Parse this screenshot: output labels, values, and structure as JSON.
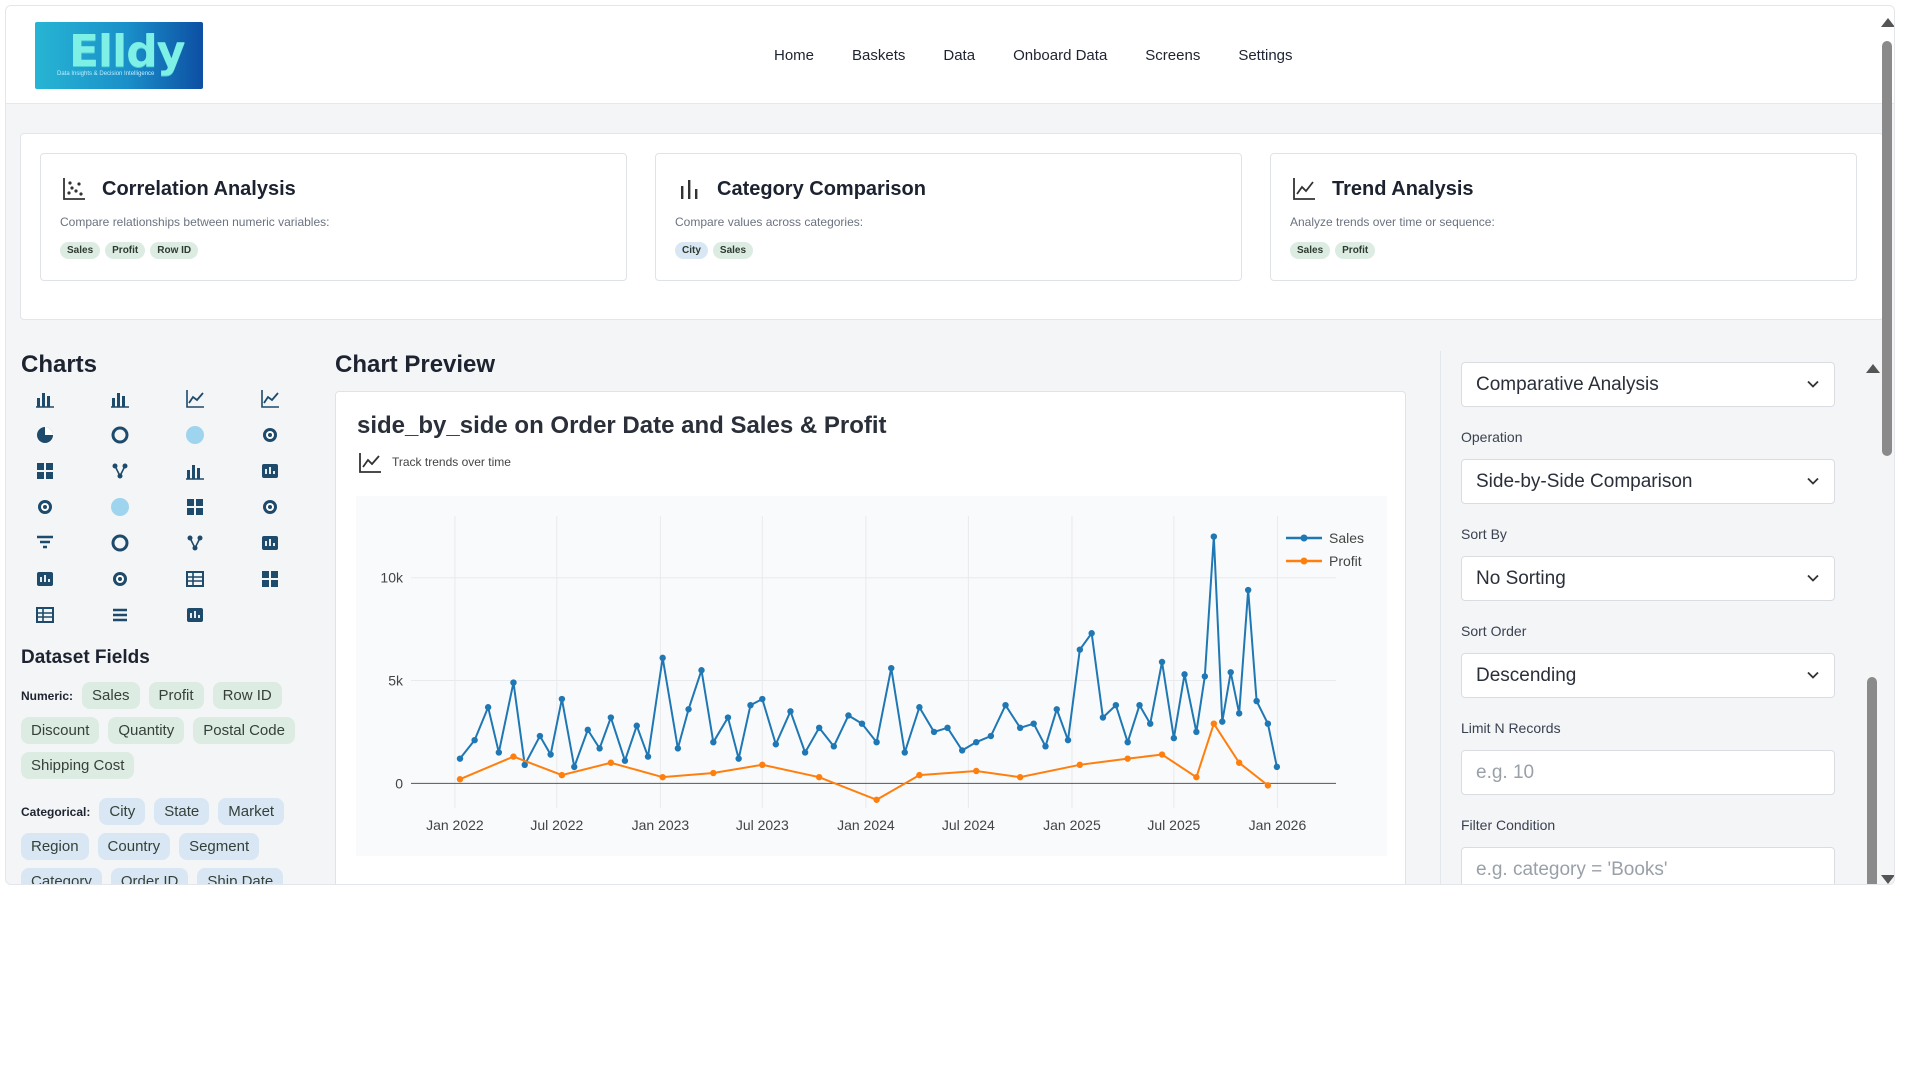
{
  "header": {
    "logo_text": "Elldy",
    "logo_tagline": "Data Insights & Decision Intelligence",
    "nav": [
      "Home",
      "Baskets",
      "Data",
      "Onboard Data",
      "Screens",
      "Settings"
    ]
  },
  "suggestions": [
    {
      "icon": "scatter-plot-icon",
      "title": "Correlation Analysis",
      "desc": "Compare relationships between numeric variables:",
      "tags": [
        {
          "text": "Sales",
          "kind": "green"
        },
        {
          "text": "Profit",
          "kind": "green"
        },
        {
          "text": "Row ID",
          "kind": "green"
        }
      ]
    },
    {
      "icon": "bar-chart-icon",
      "title": "Category Comparison",
      "desc": "Compare values across categories:",
      "tags": [
        {
          "text": "City",
          "kind": "blue"
        },
        {
          "text": "Sales",
          "kind": "green"
        }
      ]
    },
    {
      "icon": "line-chart-icon",
      "title": "Trend Analysis",
      "desc": "Analyze trends over time or sequence:",
      "tags": [
        {
          "text": "Sales",
          "kind": "green"
        },
        {
          "text": "Profit",
          "kind": "green"
        }
      ]
    }
  ],
  "charts_panel": {
    "title": "Charts",
    "icons": [
      "bar-chart-icon",
      "grouped-bar-icon",
      "line-chart-icon",
      "area-chart-icon",
      "pie-chart-icon",
      "donut-chart-icon",
      "bubble-icon",
      "radial-icon",
      "scatter-icon",
      "cluster-icon",
      "column-chart-icon",
      "histogram-icon",
      "violin-icon",
      "circle-icon",
      "treemap-icon",
      "sunburst-icon",
      "funnel-icon",
      "gauge-icon",
      "network-icon",
      "waterfall-icon",
      "candlestick-icon",
      "polar-icon",
      "table-icon",
      "pivot-icon",
      "grid-icon",
      "list-icon",
      "kpi-icon"
    ]
  },
  "fields": {
    "title": "Dataset Fields",
    "numeric_label": "Numeric:",
    "numeric": [
      "Sales",
      "Profit",
      "Row ID",
      "Discount",
      "Quantity",
      "Postal Code",
      "Shipping Cost"
    ],
    "categorical_label": "Categorical:",
    "categorical": [
      "City",
      "State",
      "Market",
      "Region",
      "Country",
      "Segment",
      "Category",
      "Order ID",
      "Ship Date"
    ]
  },
  "preview": {
    "heading": "Chart Preview",
    "title": "side_by_side on Order Date and Sales & Profit",
    "subtitle": "Track trends over time"
  },
  "controls": {
    "analysis_type": "Comparative Analysis",
    "operation_label": "Operation",
    "operation": "Side-by-Side Comparison",
    "sort_by_label": "Sort By",
    "sort_by": "No Sorting",
    "sort_order_label": "Sort Order",
    "sort_order": "Descending",
    "limit_label": "Limit N Records",
    "limit_placeholder": "e.g. 10",
    "filter_label": "Filter Condition",
    "filter_placeholder": "e.g. category = 'Books'"
  },
  "chart_data": {
    "type": "line",
    "title": "",
    "x_ticks": [
      "Jan 2022",
      "Jul 2022",
      "Jan 2023",
      "Jul 2023",
      "Jan 2024",
      "Jul 2024",
      "Jan 2025",
      "Jul 2025",
      "Jan 2026"
    ],
    "y_ticks": [
      "0",
      "5k",
      "10k"
    ],
    "ylim": [
      -1200,
      13000
    ],
    "xlim": [
      "2021-10-15",
      "2026-04-15"
    ],
    "legend_position": "top-right",
    "series": [
      {
        "name": "Sales",
        "color": "#1f77b4",
        "x": [
          "2022-01-10",
          "2022-02-05",
          "2022-03-01",
          "2022-03-20",
          "2022-04-15",
          "2022-05-05",
          "2022-06-01",
          "2022-06-20",
          "2022-07-10",
          "2022-08-01",
          "2022-08-25",
          "2022-09-15",
          "2022-10-05",
          "2022-10-30",
          "2022-11-20",
          "2022-12-10",
          "2023-01-05",
          "2023-02-01",
          "2023-02-20",
          "2023-03-15",
          "2023-04-05",
          "2023-05-01",
          "2023-05-20",
          "2023-06-10",
          "2023-07-01",
          "2023-07-25",
          "2023-08-20",
          "2023-09-15",
          "2023-10-10",
          "2023-11-05",
          "2023-12-01",
          "2023-12-25",
          "2024-01-20",
          "2024-02-15",
          "2024-03-10",
          "2024-04-05",
          "2024-05-01",
          "2024-05-25",
          "2024-06-20",
          "2024-07-15",
          "2024-08-10",
          "2024-09-05",
          "2024-10-01",
          "2024-10-25",
          "2024-11-15",
          "2024-12-05",
          "2024-12-25",
          "2025-01-15",
          "2025-02-05",
          "2025-02-25",
          "2025-03-20",
          "2025-04-10",
          "2025-05-01",
          "2025-05-20",
          "2025-06-10",
          "2025-07-01",
          "2025-07-20",
          "2025-08-10",
          "2025-08-25",
          "2025-09-10",
          "2025-09-25",
          "2025-10-10",
          "2025-10-25",
          "2025-11-10",
          "2025-11-25",
          "2025-12-15",
          "2025-12-31"
        ],
        "values": [
          1200,
          2100,
          3700,
          1500,
          4900,
          900,
          2300,
          1400,
          4100,
          800,
          2600,
          1700,
          3200,
          1100,
          2800,
          1300,
          6100,
          1700,
          3600,
          5500,
          2000,
          3200,
          1200,
          3800,
          4100,
          1900,
          3500,
          1500,
          2700,
          1800,
          3300,
          2900,
          2000,
          5600,
          1500,
          3700,
          2500,
          2700,
          1600,
          2000,
          2300,
          3800,
          2700,
          2900,
          1800,
          3600,
          2100,
          6500,
          7300,
          3200,
          3800,
          2000,
          3800,
          2900,
          5900,
          2200,
          5300,
          2500,
          5200,
          12000,
          3000,
          5400,
          3400,
          9400,
          4000,
          2900,
          800
        ]
      },
      {
        "name": "Profit",
        "color": "#ff7f0e",
        "x": [
          "2022-01-10",
          "2022-04-15",
          "2022-07-10",
          "2022-10-05",
          "2023-01-05",
          "2023-04-05",
          "2023-07-01",
          "2023-10-10",
          "2024-01-20",
          "2024-04-05",
          "2024-07-15",
          "2024-10-01",
          "2025-01-15",
          "2025-04-10",
          "2025-06-10",
          "2025-08-10",
          "2025-09-10",
          "2025-10-25",
          "2025-12-15"
        ],
        "values": [
          200,
          1300,
          400,
          1000,
          300,
          500,
          900,
          300,
          -800,
          400,
          600,
          300,
          900,
          1200,
          1400,
          300,
          2900,
          1000,
          -100
        ]
      }
    ]
  }
}
